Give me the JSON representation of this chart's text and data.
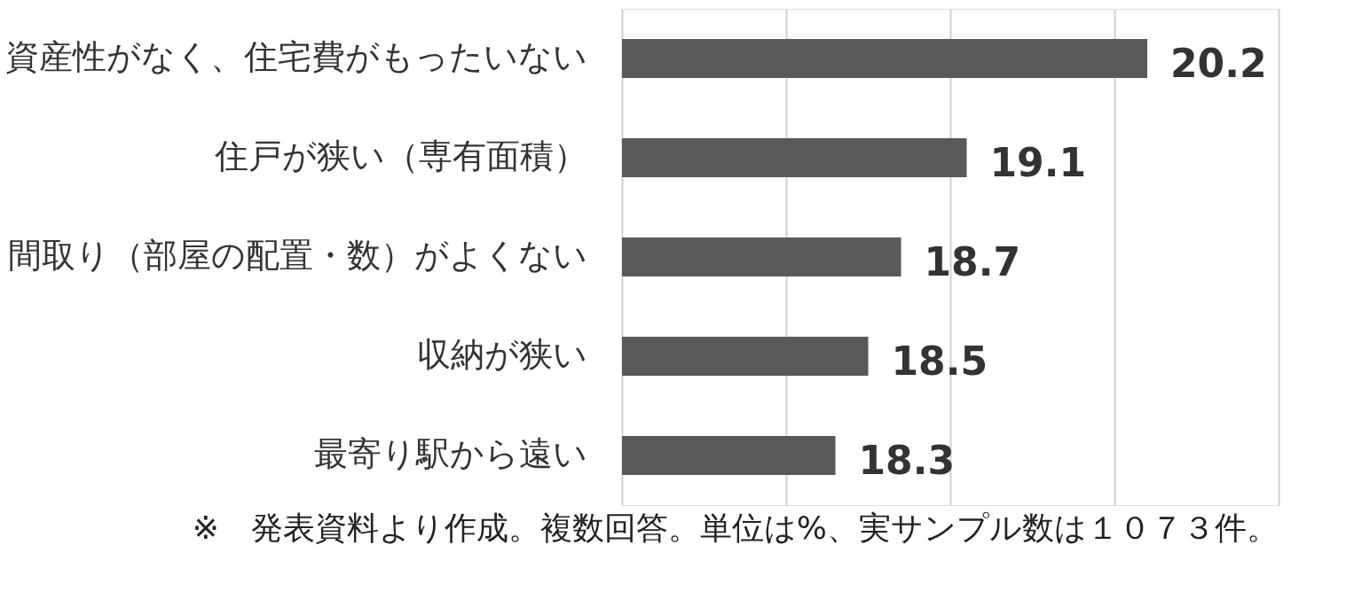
{
  "chart_data": {
    "type": "bar",
    "orientation": "horizontal",
    "categories": [
      "資産性がなく、住宅費がもったいない",
      "住戸が狭い（専有面積）",
      "間取り（部屋の配置・数）がよくない",
      "収納が狭い",
      "最寄り駅から遠い"
    ],
    "values": [
      20.2,
      19.1,
      18.7,
      18.5,
      18.3
    ],
    "color": "#595959",
    "xlim": [
      17,
      21
    ],
    "xticks": [
      {
        "value": 17,
        "label": null
      },
      {
        "value": 18,
        "label": null
      },
      {
        "value": 19,
        "label": null
      },
      {
        "value": 20,
        "label": null
      },
      {
        "value": 21,
        "label": null
      }
    ],
    "tick_labels": "y",
    "grid": "x",
    "data_labels": true,
    "annotations": [
      "※　発表資料より作成。複数回答。単位は%、実サンプル数は１０７３件。"
    ]
  }
}
